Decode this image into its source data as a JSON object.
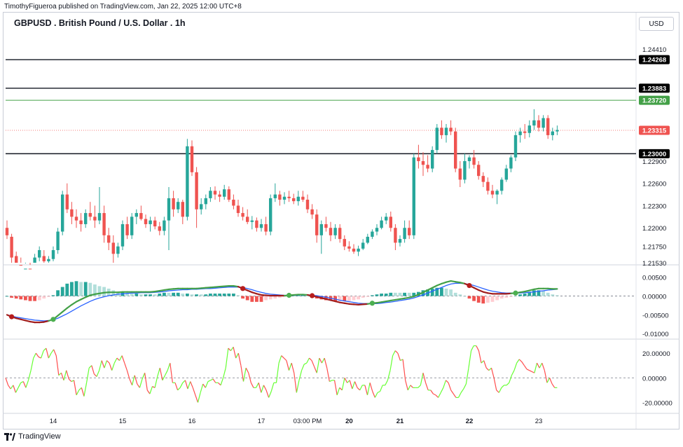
{
  "header": {
    "published_by": "TimothyFigueroa published on TradingView.com, Jan 22, 2025 12:00 UTC+8",
    "symbol_title": "GBPUSD . British Pound / U.S. Dollar . 1h",
    "currency": "USD"
  },
  "footer": {
    "brand": "TradingView"
  },
  "colors": {
    "bull": "#26a69a",
    "bear": "#ef5350",
    "level": "#131722",
    "level_green": "#43a047",
    "current": "#ef5350",
    "macd_fast": "#2e7d32",
    "macd_fast_down": "#a01c1c",
    "macd_signal": "#2962ff",
    "rsi_up": "#66ff33",
    "rsi_down": "#ff4d4d"
  },
  "chart_data": [
    {
      "type": "candlestick",
      "title": "GBPUSD . British Pound / U.S. Dollar . 1h",
      "ylim": [
        1.2153,
        1.246
      ],
      "y_ticks": [
        "1.24410",
        "1.22900",
        "1.22600",
        "1.22300",
        "1.22000",
        "1.21750",
        "1.21530"
      ],
      "horizontal_levels": [
        {
          "value": 1.24268,
          "label": "1.24268",
          "color": "black"
        },
        {
          "value": 1.23883,
          "label": "1.23883",
          "color": "black"
        },
        {
          "value": 1.2372,
          "label": "1.23720",
          "color": "green"
        },
        {
          "value": 1.23,
          "label": "1.23000",
          "color": "black"
        }
      ],
      "current_price": {
        "value": 1.23315,
        "label": "1.23315"
      },
      "x_ticks": [
        "14",
        "15",
        "16",
        "17",
        "03:00 PM",
        "20",
        "21",
        "22",
        "23"
      ],
      "x_tick_index": [
        10,
        25,
        40,
        55,
        65,
        74,
        85,
        100,
        115
      ],
      "candles": [
        [
          1.22,
          1.221,
          1.2185,
          1.219
        ],
        [
          1.2188,
          1.2192,
          1.215,
          1.216
        ],
        [
          1.2162,
          1.2168,
          1.214,
          1.215
        ],
        [
          1.215,
          1.216,
          1.213,
          1.214
        ],
        [
          1.214,
          1.2152,
          1.2132,
          1.2145
        ],
        [
          1.2145,
          1.215,
          1.2136,
          1.214
        ],
        [
          1.214,
          1.2165,
          1.2138,
          1.216
        ],
        [
          1.216,
          1.2175,
          1.2155,
          1.217
        ],
        [
          1.2162,
          1.217,
          1.215,
          1.2155
        ],
        [
          1.2155,
          1.2162,
          1.2148,
          1.2158
        ],
        [
          1.2158,
          1.2175,
          1.2155,
          1.217
        ],
        [
          1.217,
          1.22,
          1.2165,
          1.2195
        ],
        [
          1.2195,
          1.225,
          1.219,
          1.2245
        ],
        [
          1.2245,
          1.226,
          1.222,
          1.2225
        ],
        [
          1.2225,
          1.2235,
          1.2205,
          1.2215
        ],
        [
          1.2215,
          1.2225,
          1.22,
          1.221
        ],
        [
          1.221,
          1.222,
          1.2195,
          1.2205
        ],
        [
          1.2205,
          1.2225,
          1.22,
          1.222
        ],
        [
          1.222,
          1.2235,
          1.221,
          1.2215
        ],
        [
          1.2215,
          1.223,
          1.22,
          1.221
        ],
        [
          1.221,
          1.2255,
          1.2205,
          1.222
        ],
        [
          1.222,
          1.223,
          1.218,
          1.219
        ],
        [
          1.219,
          1.22,
          1.217,
          1.218
        ],
        [
          1.218,
          1.219,
          1.215,
          1.2165
        ],
        [
          1.2165,
          1.218,
          1.216,
          1.2175
        ],
        [
          1.2175,
          1.221,
          1.217,
          1.2205
        ],
        [
          1.2205,
          1.2215,
          1.2185,
          1.219
        ],
        [
          1.219,
          1.222,
          1.2185,
          1.2215
        ],
        [
          1.2215,
          1.2225,
          1.2205,
          1.222
        ],
        [
          1.222,
          1.223,
          1.221,
          1.2212
        ],
        [
          1.2212,
          1.2218,
          1.22,
          1.2205
        ],
        [
          1.2205,
          1.2215,
          1.2195,
          1.221
        ],
        [
          1.221,
          1.2215,
          1.2198,
          1.2202
        ],
        [
          1.2202,
          1.2208,
          1.219,
          1.2196
        ],
        [
          1.2196,
          1.2215,
          1.219,
          1.221
        ],
        [
          1.221,
          1.2255,
          1.217,
          1.224
        ],
        [
          1.224,
          1.225,
          1.2215,
          1.2225
        ],
        [
          1.2225,
          1.224,
          1.222,
          1.2235
        ],
        [
          1.2235,
          1.2238,
          1.2205,
          1.2215
        ],
        [
          1.2215,
          1.232,
          1.221,
          1.231
        ],
        [
          1.231,
          1.2318,
          1.227,
          1.2275
        ],
        [
          1.2275,
          1.2282,
          1.22,
          1.2225
        ],
        [
          1.2225,
          1.224,
          1.2218,
          1.2232
        ],
        [
          1.2232,
          1.2245,
          1.2225,
          1.224
        ],
        [
          1.224,
          1.2255,
          1.2235,
          1.225
        ],
        [
          1.225,
          1.2256,
          1.2238,
          1.2245
        ],
        [
          1.2245,
          1.225,
          1.2235,
          1.2242
        ],
        [
          1.2242,
          1.2258,
          1.2238,
          1.2252
        ],
        [
          1.2252,
          1.2256,
          1.2235,
          1.2238
        ],
        [
          1.2238,
          1.2245,
          1.2225,
          1.223
        ],
        [
          1.223,
          1.2238,
          1.2215,
          1.222
        ],
        [
          1.222,
          1.2228,
          1.221,
          1.2215
        ],
        [
          1.2215,
          1.2225,
          1.2205,
          1.2208
        ],
        [
          1.2208,
          1.2216,
          1.2198,
          1.221
        ],
        [
          1.221,
          1.2214,
          1.2195,
          1.22
        ],
        [
          1.22,
          1.2212,
          1.2195,
          1.2205
        ],
        [
          1.2205,
          1.2215,
          1.219,
          1.2195
        ],
        [
          1.2195,
          1.2245,
          1.219,
          1.224
        ],
        [
          1.224,
          1.226,
          1.2235,
          1.2245
        ],
        [
          1.2245,
          1.225,
          1.223,
          1.2238
        ],
        [
          1.2238,
          1.2248,
          1.2232,
          1.2242
        ],
        [
          1.2242,
          1.225,
          1.2235,
          1.224
        ],
        [
          1.224,
          1.2246,
          1.2232,
          1.2236
        ],
        [
          1.2236,
          1.225,
          1.223,
          1.2242
        ],
        [
          1.2242,
          1.225,
          1.2235,
          1.2238
        ],
        [
          1.2238,
          1.2245,
          1.222,
          1.2225
        ],
        [
          1.2225,
          1.2232,
          1.2212,
          1.2218
        ],
        [
          1.2218,
          1.2225,
          1.218,
          1.219
        ],
        [
          1.219,
          1.221,
          1.2165,
          1.2205
        ],
        [
          1.2205,
          1.2215,
          1.2195,
          1.22
        ],
        [
          1.22,
          1.2208,
          1.2182,
          1.219
        ],
        [
          1.219,
          1.2205,
          1.2185,
          1.22
        ],
        [
          1.22,
          1.2205,
          1.218,
          1.2185
        ],
        [
          1.2185,
          1.219,
          1.217,
          1.2175
        ],
        [
          1.2175,
          1.2182,
          1.2168,
          1.2172
        ],
        [
          1.2172,
          1.2178,
          1.2165,
          1.2168
        ],
        [
          1.2168,
          1.2176,
          1.2162,
          1.2172
        ],
        [
          1.2172,
          1.2185,
          1.217,
          1.218
        ],
        [
          1.218,
          1.2192,
          1.2178,
          1.2188
        ],
        [
          1.2188,
          1.2198,
          1.2185,
          1.2195
        ],
        [
          1.2195,
          1.2205,
          1.219,
          1.22
        ],
        [
          1.22,
          1.2215,
          1.2198,
          1.221
        ],
        [
          1.221,
          1.222,
          1.2205,
          1.2215
        ],
        [
          1.2215,
          1.2222,
          1.2195,
          1.22
        ],
        [
          1.22,
          1.2205,
          1.217,
          1.218
        ],
        [
          1.218,
          1.219,
          1.2175,
          1.2185
        ],
        [
          1.2185,
          1.221,
          1.218,
          1.22
        ],
        [
          1.22,
          1.221,
          1.2185,
          1.219
        ],
        [
          1.219,
          1.23,
          1.2185,
          1.2295
        ],
        [
          1.2295,
          1.2312,
          1.228,
          1.229
        ],
        [
          1.229,
          1.2302,
          1.227,
          1.2285
        ],
        [
          1.2285,
          1.2298,
          1.2275,
          1.228
        ],
        [
          1.228,
          1.231,
          1.2275,
          1.2305
        ],
        [
          1.2305,
          1.234,
          1.23,
          1.2335
        ],
        [
          1.2335,
          1.2345,
          1.232,
          1.2325
        ],
        [
          1.2325,
          1.234,
          1.2315,
          1.2335
        ],
        [
          1.2335,
          1.2345,
          1.2325,
          1.233
        ],
        [
          1.233,
          1.2335,
          1.2275,
          1.228
        ],
        [
          1.228,
          1.229,
          1.2255,
          1.2265
        ],
        [
          1.2265,
          1.23,
          1.226,
          1.229
        ],
        [
          1.229,
          1.2298,
          1.228,
          1.2295
        ],
        [
          1.2295,
          1.2305,
          1.228,
          1.2285
        ],
        [
          1.2285,
          1.229,
          1.2265,
          1.227
        ],
        [
          1.227,
          1.2275,
          1.2255,
          1.2262
        ],
        [
          1.2262,
          1.2268,
          1.2245,
          1.225
        ],
        [
          1.225,
          1.2258,
          1.224,
          1.2245
        ],
        [
          1.2245,
          1.2252,
          1.2232,
          1.225
        ],
        [
          1.225,
          1.2268,
          1.2245,
          1.2265
        ],
        [
          1.2265,
          1.2285,
          1.2262,
          1.228
        ],
        [
          1.228,
          1.2298,
          1.2275,
          1.2295
        ],
        [
          1.2295,
          1.233,
          1.229,
          1.2325
        ],
        [
          1.2325,
          1.2335,
          1.2315,
          1.233
        ],
        [
          1.233,
          1.234,
          1.232,
          1.2328
        ],
        [
          1.2328,
          1.2345,
          1.2322,
          1.2338
        ],
        [
          1.2338,
          1.236,
          1.2332,
          1.2345
        ],
        [
          1.2345,
          1.2352,
          1.233,
          1.2335
        ],
        [
          1.2335,
          1.2352,
          1.233,
          1.2348
        ],
        [
          1.2348,
          1.2352,
          1.232,
          1.2325
        ],
        [
          1.2325,
          1.2335,
          1.2318,
          1.233
        ],
        [
          1.233,
          1.2338,
          1.2325,
          1.2332
        ]
      ]
    },
    {
      "type": "macd",
      "ylim": [
        -0.0107,
        0.007
      ],
      "y_ticks": [
        "0.00500",
        "0.00000",
        "-0.00500",
        "-0.01000"
      ],
      "fast": [
        -0.005,
        -0.0055,
        -0.0059,
        -0.0062,
        -0.0065,
        -0.0068,
        -0.007,
        -0.007,
        -0.0069,
        -0.0066,
        -0.0062,
        -0.0052,
        -0.0042,
        -0.0032,
        -0.0023,
        -0.0015,
        -0.0009,
        -0.0003,
        0.0002,
        0.0005,
        0.0007,
        0.0009,
        0.001,
        0.001,
        0.001,
        0.0011,
        0.0011,
        0.0011,
        0.0011,
        0.0011,
        0.0011,
        0.0011,
        0.0012,
        0.0014,
        0.0016,
        0.0018,
        0.0019,
        0.002,
        0.002,
        0.002,
        0.002,
        0.002,
        0.0021,
        0.0022,
        0.0023,
        0.0024,
        0.0025,
        0.0026,
        0.0027,
        0.0027,
        0.0025,
        0.002,
        0.0015,
        0.001,
        0.0006,
        0.0003,
        0.0002,
        0.0001,
        0.0001,
        0.0001,
        0.0001,
        0.0002,
        0.0003,
        0.0004,
        0.0004,
        0.0003,
        0.0001,
        -0.0002,
        -0.0005,
        -0.0008,
        -0.0011,
        -0.0014,
        -0.0017,
        -0.0019,
        -0.0021,
        -0.0022,
        -0.0023,
        -0.0022,
        -0.0021,
        -0.0019,
        -0.0018,
        -0.0016,
        -0.0014,
        -0.0012,
        -0.001,
        -0.0008,
        -0.0006,
        -0.0004,
        -0.0001,
        0.0004,
        0.001,
        0.0016,
        0.0022,
        0.0028,
        0.0033,
        0.0037,
        0.004,
        0.0038,
        0.0036,
        0.0033,
        0.0028,
        0.0022,
        0.0016,
        0.0011,
        0.0008,
        0.0006,
        0.0006,
        0.0006,
        0.0006,
        0.0007,
        0.0008,
        0.001,
        0.0012,
        0.0015,
        0.0018,
        0.002,
        0.002,
        0.002,
        0.0019,
        0.0019
      ],
      "signal": [
        -0.005,
        -0.0053,
        -0.0056,
        -0.0058,
        -0.006,
        -0.0062,
        -0.0064,
        -0.0065,
        -0.0066,
        -0.0065,
        -0.0063,
        -0.0059,
        -0.0053,
        -0.0047,
        -0.004,
        -0.0033,
        -0.0026,
        -0.002,
        -0.0014,
        -0.0009,
        -0.0005,
        -0.0002,
        0.0001,
        0.0003,
        0.0005,
        0.0006,
        0.0007,
        0.0008,
        0.0008,
        0.0009,
        0.0009,
        0.0009,
        0.001,
        0.0011,
        0.0012,
        0.0014,
        0.0015,
        0.0016,
        0.0017,
        0.0017,
        0.0018,
        0.0018,
        0.0019,
        0.002,
        0.002,
        0.0021,
        0.0022,
        0.0023,
        0.0024,
        0.0024,
        0.0024,
        0.0023,
        0.002,
        0.0017,
        0.0013,
        0.001,
        0.0007,
        0.0005,
        0.0004,
        0.0003,
        0.0002,
        0.0002,
        0.0002,
        0.0003,
        0.0003,
        0.0003,
        0.0002,
        0.0001,
        -0.0001,
        -0.0003,
        -0.0006,
        -0.0008,
        -0.0011,
        -0.0013,
        -0.0015,
        -0.0017,
        -0.0019,
        -0.002,
        -0.002,
        -0.002,
        -0.002,
        -0.0019,
        -0.0017,
        -0.0016,
        -0.0014,
        -0.0012,
        -0.001,
        -0.0008,
        -0.0005,
        -0.0001,
        0.0003,
        0.0008,
        0.0013,
        0.0018,
        0.0023,
        0.0028,
        0.0032,
        0.0034,
        0.0034,
        0.0033,
        0.0031,
        0.0028,
        0.0024,
        0.002,
        0.0016,
        0.0013,
        0.0011,
        0.0009,
        0.0008,
        0.0008,
        0.0008,
        0.0008,
        0.0009,
        0.001,
        0.0011,
        0.0013,
        0.0014,
        0.0016,
        0.0017,
        0.0018
      ]
    },
    {
      "type": "line",
      "ylim": [
        -26,
        28
      ],
      "y_ticks": [
        "20.00000",
        "0.00000",
        "-20.00000"
      ],
      "values": [
        0,
        -6,
        -9,
        -6,
        -12,
        -8,
        -4,
        -3,
        -8,
        -2,
        6,
        16,
        20,
        17,
        16,
        22,
        24,
        16,
        20,
        23,
        18,
        2,
        4,
        -2,
        6,
        -1,
        -3,
        -2,
        -14,
        -10,
        -8,
        -15,
        -4,
        8,
        10,
        3,
        1,
        6,
        14,
        8,
        14,
        12,
        6,
        12,
        16,
        14,
        18,
        12,
        6,
        -1,
        -6,
        2,
        -5,
        -8,
        -1,
        4,
        -10,
        -13,
        -7,
        -8,
        1,
        8,
        -2,
        2,
        6,
        12,
        -4,
        -4,
        -10,
        -8,
        -4,
        -2,
        -9,
        -3,
        -8,
        -14,
        -20,
        -12,
        -5,
        -8,
        -3,
        -2,
        -1,
        -4,
        -4,
        -6,
        0,
        8,
        24,
        22,
        25,
        16,
        20,
        10,
        -3,
        8,
        4,
        -4,
        -8,
        -8,
        -4,
        -12,
        -6,
        -10,
        -16,
        -11,
        -4,
        -4,
        12,
        18,
        16,
        14,
        6,
        12,
        4,
        -12,
        -2,
        6,
        11,
        12,
        16,
        14,
        9,
        4,
        16,
        12,
        16,
        8,
        -3,
        -2,
        -2,
        -14,
        -8,
        -10,
        0,
        -4,
        -2,
        -9,
        -3,
        -8,
        -10,
        -6,
        -6,
        -14,
        -4,
        -11,
        -16,
        -12,
        -11,
        -6,
        -6,
        -2,
        6,
        18,
        22,
        20,
        14,
        15,
        -2,
        -10,
        -6,
        -8,
        -8,
        -8,
        -6,
        4,
        -4,
        -10,
        -10,
        -13,
        -14,
        -16,
        -12,
        -8,
        -2,
        -4,
        -10,
        -13,
        -16,
        -16,
        -12,
        -9,
        -5,
        8,
        22,
        26,
        26,
        22,
        12,
        14,
        8,
        6,
        8,
        0,
        -10,
        -12,
        -8,
        -6,
        -6,
        -4,
        2,
        6,
        12,
        15,
        13,
        10,
        7,
        6,
        5,
        4,
        12,
        8,
        12,
        6,
        -4,
        0,
        -5,
        -8,
        -8
      ]
    }
  ]
}
